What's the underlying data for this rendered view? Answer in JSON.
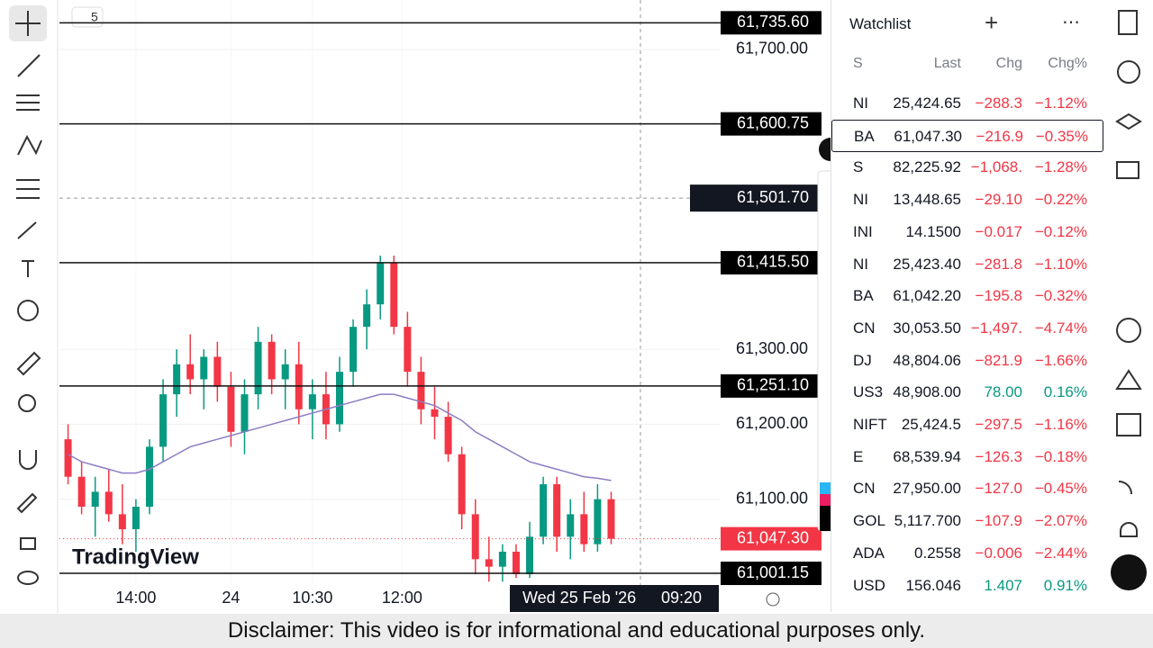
{
  "chart_data": {
    "type": "candlestick",
    "interval_badge": "5",
    "brand": "TradingView",
    "xlim": [
      -0.5,
      40.5
    ],
    "xticks": [
      {
        "value": 5,
        "label": "14:00"
      },
      {
        "value": 12,
        "label": "24"
      },
      {
        "value": 18,
        "label": "10:30"
      },
      {
        "value": 24.6,
        "label": "12:00"
      }
    ],
    "ylim": [
      60988,
      61766
    ],
    "yticks": [
      {
        "value": 61700,
        "label": "61,700.00"
      },
      {
        "value": 61300,
        "label": "61,300.00"
      },
      {
        "value": 61200,
        "label": "61,200.00"
      },
      {
        "value": 61100,
        "label": "61,100.00"
      }
    ],
    "up_color": "#089981",
    "down_color": "#f23645",
    "candles": [
      [
        61180,
        61200,
        61120,
        61130
      ],
      [
        61130,
        61150,
        61080,
        61090
      ],
      [
        61090,
        61130,
        61050,
        61110
      ],
      [
        61110,
        61140,
        61070,
        61080
      ],
      [
        61080,
        61120,
        61040,
        61060
      ],
      [
        61060,
        61100,
        61030,
        61090
      ],
      [
        61090,
        61180,
        61080,
        61170
      ],
      [
        61170,
        61260,
        61150,
        61240
      ],
      [
        61240,
        61300,
        61210,
        61280
      ],
      [
        61280,
        61320,
        61240,
        61260
      ],
      [
        61260,
        61300,
        61220,
        61290
      ],
      [
        61290,
        61310,
        61230,
        61250
      ],
      [
        61250,
        61270,
        61170,
        61190
      ],
      [
        61190,
        61260,
        61160,
        61240
      ],
      [
        61240,
        61330,
        61220,
        61310
      ],
      [
        61310,
        61320,
        61240,
        61260
      ],
      [
        61260,
        61300,
        61220,
        61280
      ],
      [
        61280,
        61310,
        61200,
        61220
      ],
      [
        61220,
        61260,
        61180,
        61240
      ],
      [
        61240,
        61270,
        61180,
        61200
      ],
      [
        61200,
        61290,
        61190,
        61270
      ],
      [
        61270,
        61340,
        61250,
        61330
      ],
      [
        61330,
        61380,
        61300,
        61360
      ],
      [
        61360,
        61425,
        61340,
        61415
      ],
      [
        61415,
        61425,
        61320,
        61330
      ],
      [
        61330,
        61350,
        61250,
        61270
      ],
      [
        61270,
        61290,
        61200,
        61220
      ],
      [
        61220,
        61250,
        61180,
        61210
      ],
      [
        61210,
        61230,
        61150,
        61160
      ],
      [
        61160,
        61170,
        61060,
        61080
      ],
      [
        61080,
        61100,
        61000,
        61020
      ],
      [
        61020,
        61050,
        60990,
        61010
      ],
      [
        61010,
        61040,
        60990,
        61030
      ],
      [
        61030,
        61040,
        60995,
        61000
      ],
      [
        61000,
        61070,
        60995,
        61050
      ],
      [
        61050,
        61130,
        61040,
        61120
      ],
      [
        61120,
        61130,
        61030,
        61050
      ],
      [
        61050,
        61100,
        61020,
        61080
      ],
      [
        61080,
        61110,
        61030,
        61040
      ],
      [
        61040,
        61120,
        61030,
        61100
      ],
      [
        61100,
        61110,
        61040,
        61047.3
      ]
    ],
    "moving_average": {
      "color": "#8e7cc3",
      "values": [
        61160,
        61150,
        61145,
        61140,
        61135,
        61135,
        61140,
        61150,
        61160,
        61170,
        61175,
        61180,
        61185,
        61190,
        61195,
        61200,
        61205,
        61210,
        61215,
        61220,
        61225,
        61230,
        61235,
        61240,
        61240,
        61235,
        61230,
        61225,
        61215,
        61205,
        61190,
        61180,
        61170,
        61160,
        61150,
        61145,
        61140,
        61135,
        61130,
        61128,
        61125
      ]
    },
    "price_lines": [
      {
        "value": 61735.6,
        "label": "61,735.60"
      },
      {
        "value": 61600.75,
        "label": "61,600.75"
      },
      {
        "value": 61415.5,
        "label": "61,415.50"
      },
      {
        "value": 61251.1,
        "label": "61,251.10"
      },
      {
        "value": 61001.15,
        "label": "61,001.15"
      }
    ],
    "crosshair": {
      "value": 61501.7,
      "label": "61,501.70",
      "date": "Wed 25 Feb '26",
      "time": "09:20"
    },
    "last_price": {
      "value": 61047.3,
      "label": "61,047.30",
      "color": "#f23645"
    }
  },
  "watchlist": {
    "title": "Watchlist",
    "columns": [
      "S",
      "Last",
      "Chg",
      "Chg%"
    ],
    "rows": [
      {
        "symbol": "NI",
        "last": "25,424.65",
        "chg": "−288.3",
        "pct": "−1.12%",
        "color": "#f23645"
      },
      {
        "symbol": "BA",
        "last": "61,047.30",
        "chg": "−216.9",
        "pct": "−0.35%",
        "color": "#f23645"
      },
      {
        "symbol": "S",
        "last": "82,225.92",
        "chg": "−1,068.",
        "pct": "−1.28%",
        "color": "#f23645"
      },
      {
        "symbol": "NI",
        "last": "13,448.65",
        "chg": "−29.10",
        "pct": "−0.22%",
        "color": "#f23645"
      },
      {
        "symbol": "INI",
        "last": "14.1500",
        "chg": "−0.017",
        "pct": "−0.12%",
        "color": "#f23645"
      },
      {
        "symbol": "NI",
        "last": "25,423.40",
        "chg": "−281.8",
        "pct": "−1.10%",
        "color": "#f23645"
      },
      {
        "symbol": "BA",
        "last": "61,042.20",
        "chg": "−195.8",
        "pct": "−0.32%",
        "color": "#f23645"
      },
      {
        "symbol": "CN",
        "last": "30,053.50",
        "chg": "−1,497.",
        "pct": "−4.74%",
        "color": "#f23645"
      },
      {
        "symbol": "DJ",
        "last": "48,804.06",
        "chg": "−821.9",
        "pct": "−1.66%",
        "color": "#f23645"
      },
      {
        "symbol": "US3",
        "last": "48,908.00",
        "chg": "78.00",
        "pct": "0.16%",
        "color": "#089981"
      },
      {
        "symbol": "NIFT",
        "last": "25,424.5",
        "chg": "−297.5",
        "pct": "−1.16%",
        "color": "#f23645"
      },
      {
        "symbol": "E",
        "last": "68,539.94",
        "chg": "−126.3",
        "pct": "−0.18%",
        "color": "#f23645"
      },
      {
        "symbol": "CN",
        "last": "27,950.00",
        "chg": "−127.0",
        "pct": "−0.45%",
        "color": "#f23645"
      },
      {
        "symbol": "GOL",
        "last": "5,117.700",
        "chg": "−107.9",
        "pct": "−2.07%",
        "color": "#f23645"
      },
      {
        "symbol": "ADA",
        "last": "0.2558",
        "chg": "−0.006",
        "pct": "−2.44%",
        "color": "#f23645"
      },
      {
        "symbol": "USD",
        "last": "156.046",
        "chg": "1.407",
        "pct": "0.91%",
        "color": "#089981"
      }
    ]
  },
  "disclaimer": "Disclaimer: This video is for informational and educational purposes only."
}
